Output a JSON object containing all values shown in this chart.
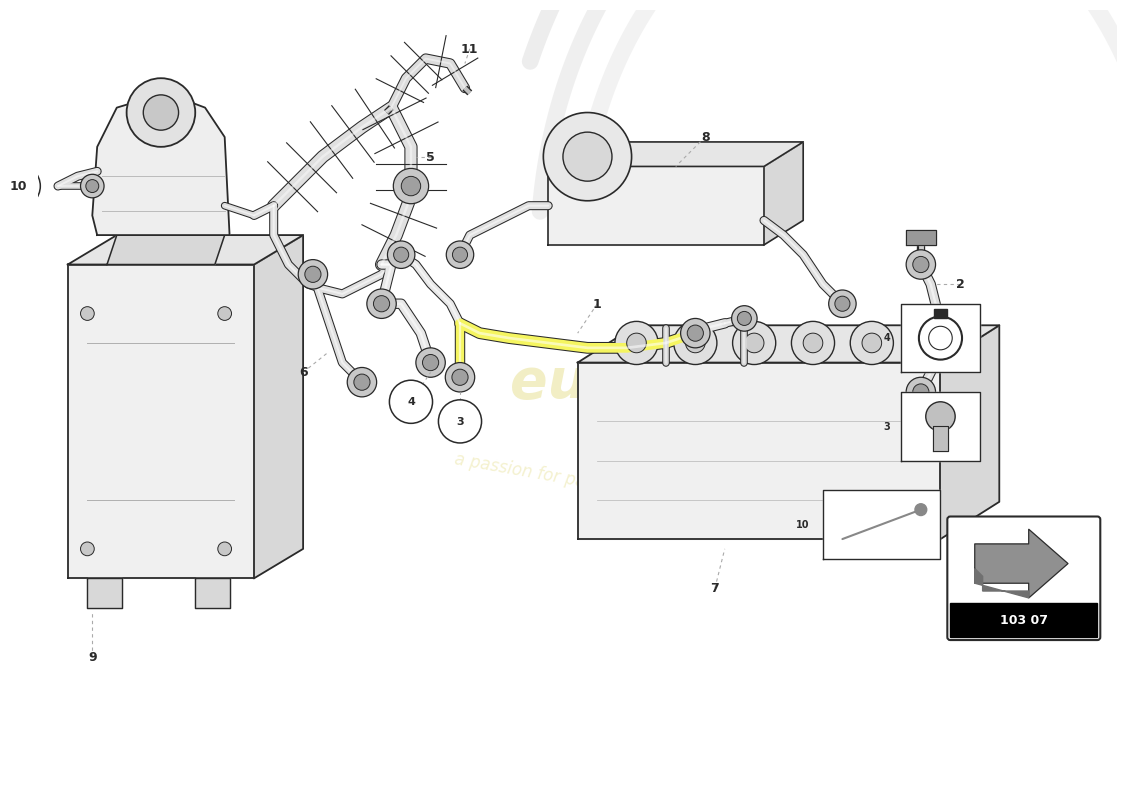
{
  "bg_color": "#ffffff",
  "lc": "#2a2a2a",
  "dc": "#aaaaaa",
  "wm_color": "#d4c840",
  "wm_alpha": 0.3,
  "wm_text1": "eurosparés",
  "wm_text2": "a passion for parts since 1985",
  "code_text": "103 07",
  "label_fs": 9,
  "hose_fill": "#e8e8e8",
  "hose_edge": "#2a2a2a",
  "box_face": "#f0f0f0",
  "box_side": "#d8d8d8",
  "box_top": "#e6e6e6"
}
